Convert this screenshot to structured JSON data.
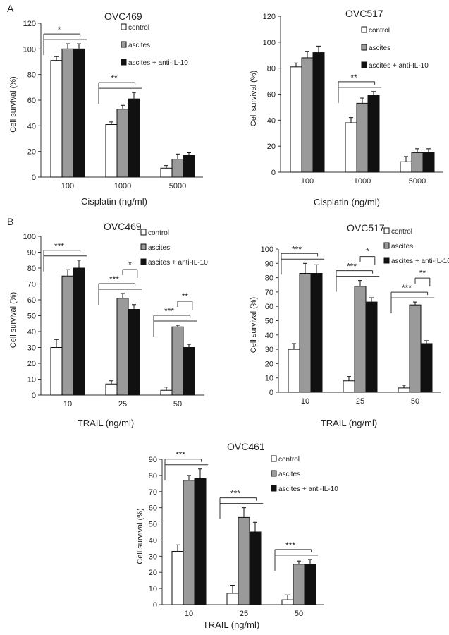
{
  "panel_letters": [
    "A",
    "B"
  ],
  "legend_labels": [
    "control",
    "ascites",
    "ascites + anti-IL-10"
  ],
  "colors": {
    "control": "#ffffff",
    "ascites": "#9a9a9a",
    "ascites_anti": "#111111",
    "axis": "#333333"
  },
  "chart_data": [
    {
      "type": "bar",
      "title": "OVC469",
      "xlabel": "Cisplatin (ng/ml)",
      "ylabel": "Cell survival (%)",
      "ylim": [
        0,
        120
      ],
      "yticks": [
        0,
        20,
        40,
        60,
        80,
        100,
        120
      ],
      "categories": [
        "100",
        "1000",
        "5000"
      ],
      "series": [
        {
          "name": "control",
          "values": [
            91,
            41,
            7
          ],
          "errors": [
            3,
            2,
            2
          ]
        },
        {
          "name": "ascites",
          "values": [
            100,
            53,
            14
          ],
          "errors": [
            4,
            3,
            4
          ]
        },
        {
          "name": "ascites + anti-IL-10",
          "values": [
            100,
            61,
            17
          ],
          "errors": [
            4,
            5,
            2
          ]
        }
      ],
      "significance": [
        "*",
        "**",
        ""
      ],
      "legend_position": "top-right"
    },
    {
      "type": "bar",
      "title": "OVC517",
      "xlabel": "Cisplatin (ng/ml)",
      "ylabel": "Cell survival (%)",
      "ylim": [
        0,
        120
      ],
      "yticks": [
        0,
        20,
        40,
        60,
        80,
        100,
        120
      ],
      "categories": [
        "100",
        "1000",
        "5000"
      ],
      "series": [
        {
          "name": "control",
          "values": [
            81,
            38,
            8
          ],
          "errors": [
            3,
            4,
            4
          ]
        },
        {
          "name": "ascites",
          "values": [
            88,
            53,
            15
          ],
          "errors": [
            5,
            4,
            3
          ]
        },
        {
          "name": "ascites + anti-IL-10",
          "values": [
            92,
            59,
            15
          ],
          "errors": [
            5,
            3,
            3
          ]
        }
      ],
      "significance": [
        "",
        "**",
        ""
      ],
      "legend_position": "top-right"
    },
    {
      "type": "bar",
      "title": "OVC469",
      "xlabel": "TRAIL (ng/ml)",
      "ylabel": "Cell survival (%)",
      "ylim": [
        0,
        100
      ],
      "yticks": [
        0,
        10,
        20,
        30,
        40,
        50,
        60,
        70,
        80,
        90,
        100
      ],
      "categories": [
        "10",
        "25",
        "50"
      ],
      "series": [
        {
          "name": "control",
          "values": [
            30,
            7,
            3
          ],
          "errors": [
            5,
            2,
            2
          ]
        },
        {
          "name": "ascites",
          "values": [
            75,
            61,
            43
          ],
          "errors": [
            4,
            3,
            1
          ]
        },
        {
          "name": "ascites + anti-IL-10",
          "values": [
            80,
            54,
            30
          ],
          "errors": [
            5,
            3,
            2
          ]
        }
      ],
      "significance": [
        "***",
        "***",
        "***"
      ],
      "pair_significance": [
        "",
        "*",
        "**"
      ],
      "legend_position": "top-right"
    },
    {
      "type": "bar",
      "title": "OVC517",
      "xlabel": "TRAIL (ng/ml)",
      "ylabel": "Cell survival (%)",
      "ylim": [
        0,
        100
      ],
      "yticks": [
        0,
        10,
        20,
        30,
        40,
        50,
        60,
        70,
        80,
        90,
        100
      ],
      "categories": [
        "10",
        "25",
        "50"
      ],
      "series": [
        {
          "name": "control",
          "values": [
            30,
            8,
            3
          ],
          "errors": [
            4,
            3,
            2
          ]
        },
        {
          "name": "ascites",
          "values": [
            83,
            74,
            61
          ],
          "errors": [
            7,
            4,
            2
          ]
        },
        {
          "name": "ascites + anti-IL-10",
          "values": [
            83,
            63,
            34
          ],
          "errors": [
            6,
            3,
            2
          ]
        }
      ],
      "significance": [
        "***",
        "***",
        "***"
      ],
      "pair_significance": [
        "",
        "*",
        "**"
      ],
      "legend_position": "top-right"
    },
    {
      "type": "bar",
      "title": "OVC461",
      "xlabel": "TRAIL (ng/ml)",
      "ylabel": "Cell survival (%)",
      "ylim": [
        0,
        90
      ],
      "yticks": [
        0,
        10,
        20,
        30,
        40,
        50,
        60,
        70,
        80,
        90
      ],
      "categories": [
        "10",
        "25",
        "50"
      ],
      "series": [
        {
          "name": "control",
          "values": [
            33,
            7,
            3
          ],
          "errors": [
            4,
            5,
            3
          ]
        },
        {
          "name": "ascites",
          "values": [
            77,
            54,
            25
          ],
          "errors": [
            3,
            6,
            2
          ]
        },
        {
          "name": "ascites + anti-IL-10",
          "values": [
            78,
            45,
            25
          ],
          "errors": [
            6,
            6,
            3
          ]
        }
      ],
      "significance": [
        "***",
        "***",
        "***"
      ],
      "legend_position": "top-right"
    }
  ]
}
